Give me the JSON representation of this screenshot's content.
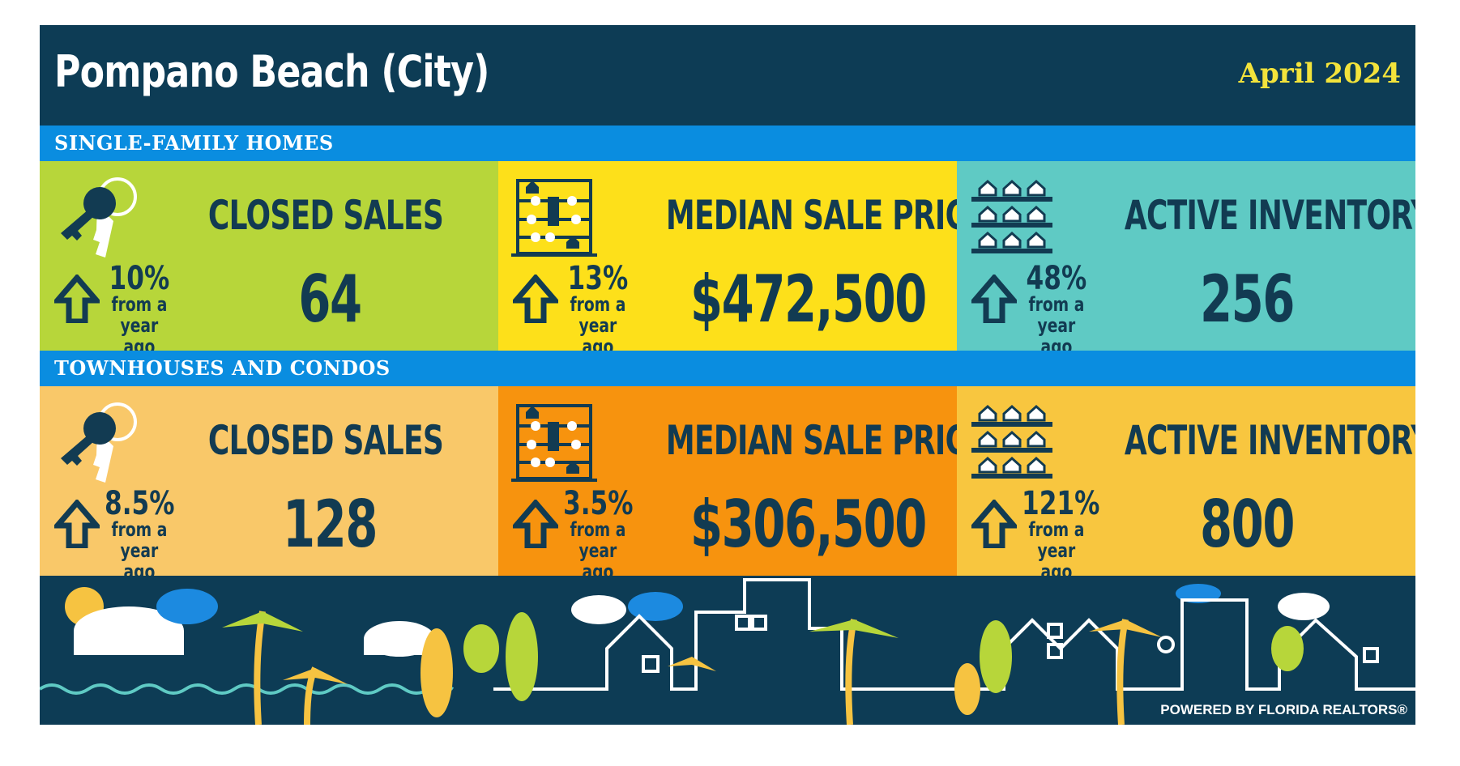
{
  "header": {
    "title": "Pompano Beach (City)",
    "date": "April 2024"
  },
  "sections": [
    {
      "title": "SINGLE-FAMILY HOMES",
      "cards": [
        {
          "label": "CLOSED SALES",
          "change": "10%",
          "change_text": "from a year ago",
          "value": "64"
        },
        {
          "label": "MEDIAN SALE PRICE",
          "change": "13%",
          "change_text": "from a year ago",
          "value": "$472,500"
        },
        {
          "label": "ACTIVE INVENTORY",
          "change": "48%",
          "change_text": "from a year ago",
          "value": "256"
        }
      ]
    },
    {
      "title": "TOWNHOUSES AND CONDOS",
      "cards": [
        {
          "label": "CLOSED SALES",
          "change": "8.5%",
          "change_text": "from a year ago",
          "value": "128"
        },
        {
          "label": "MEDIAN SALE PRICE",
          "change": "3.5%",
          "change_text": "from a year ago",
          "value": "$306,500"
        },
        {
          "label": "ACTIVE INVENTORY",
          "change": "121%",
          "change_text": "from a year ago",
          "value": "800"
        }
      ]
    }
  ],
  "footer": {
    "powered_by": "POWERED BY FLORIDA REALTORS®"
  }
}
